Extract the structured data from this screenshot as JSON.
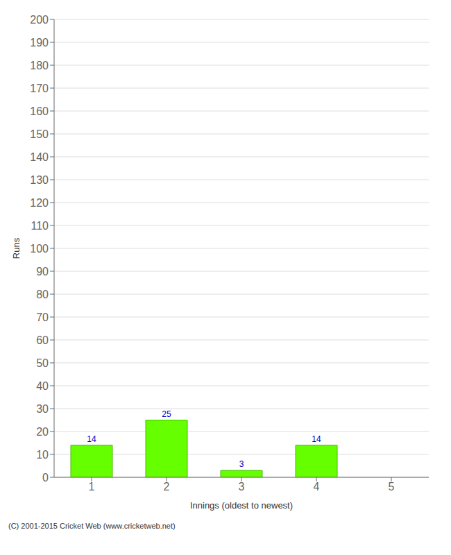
{
  "chart_data": {
    "type": "bar",
    "xlabel": "Innings (oldest to newest)",
    "ylabel": "Runs",
    "categories": [
      1,
      2,
      3,
      4,
      5
    ],
    "values": [
      14,
      25,
      3,
      14,
      0
    ],
    "color": "#66ff00",
    "ylim": [
      0,
      200
    ],
    "yticks": [
      0,
      10,
      20,
      30,
      40,
      50,
      60,
      70,
      80,
      90,
      100,
      110,
      120,
      130,
      140,
      150,
      160,
      170,
      180,
      190,
      200
    ],
    "grid": true,
    "data_labels": true,
    "footer": "(C) 2001-2015 Cricket Web (www.cricketweb.net)"
  }
}
